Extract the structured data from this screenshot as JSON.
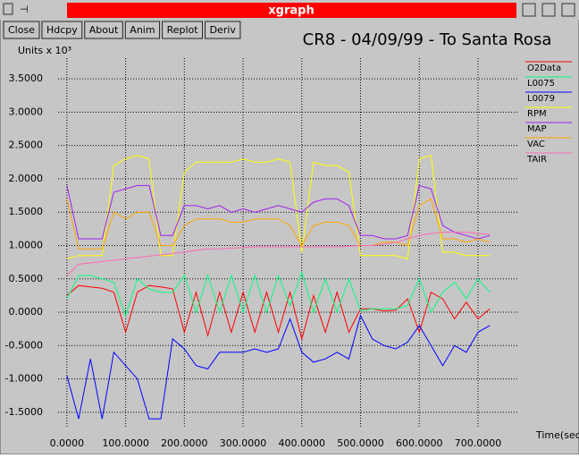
{
  "window": {
    "title": "xgraph",
    "buttons": [
      "Close",
      "Hdcpy",
      "About",
      "Anim",
      "Replot",
      "Deriv"
    ]
  },
  "chart_data": {
    "type": "line",
    "title": "CR8 - 04/09/99 - To Santa Rosa",
    "y_label": "Units x 10³",
    "x_label": "Time(sec)",
    "x": [
      0,
      20,
      40,
      60,
      80,
      100,
      120,
      140,
      160,
      180,
      200,
      220,
      240,
      260,
      280,
      300,
      320,
      340,
      360,
      380,
      400,
      420,
      440,
      460,
      480,
      500,
      520,
      540,
      560,
      580,
      600,
      620,
      640,
      660,
      680,
      700,
      720
    ],
    "series": [
      {
        "name": "O2Data",
        "color": "#ff0000",
        "values": [
          0.25,
          0.4,
          0.38,
          0.36,
          0.3,
          -0.3,
          0.3,
          0.4,
          0.38,
          0.35,
          -0.3,
          0.3,
          -0.35,
          0.3,
          -0.3,
          0.3,
          -0.3,
          0.3,
          -0.3,
          0.3,
          -0.4,
          0.25,
          -0.3,
          0.3,
          -0.3,
          0.05,
          0.05,
          0.02,
          0.03,
          0.2,
          -0.3,
          0.3,
          0.2,
          -0.1,
          0.15,
          -0.1,
          0.05
        ]
      },
      {
        "name": "L0075",
        "color": "#00ff80",
        "values": [
          0.2,
          0.55,
          0.55,
          0.5,
          0.45,
          -0.05,
          0.5,
          0.35,
          0.3,
          0.3,
          0.55,
          0.0,
          0.55,
          0.0,
          0.55,
          0.0,
          0.55,
          0.0,
          0.55,
          0.1,
          0.6,
          0.0,
          0.5,
          0.0,
          0.5,
          0.02,
          0.05,
          0.05,
          0.05,
          0.1,
          0.5,
          0.0,
          0.3,
          0.45,
          0.2,
          0.5,
          0.3
        ]
      },
      {
        "name": "L0079",
        "color": "#0000ff",
        "values": [
          -0.95,
          -1.6,
          -0.7,
          -1.6,
          -0.6,
          -0.8,
          -1.0,
          -1.6,
          -1.6,
          -0.4,
          -0.55,
          -0.8,
          -0.85,
          -0.6,
          -0.6,
          -0.6,
          -0.55,
          -0.6,
          -0.55,
          -0.1,
          -0.6,
          -0.75,
          -0.7,
          -0.6,
          -0.7,
          -0.05,
          -0.4,
          -0.5,
          -0.55,
          -0.45,
          -0.2,
          -0.5,
          -0.8,
          -0.5,
          -0.6,
          -0.3,
          -0.2
        ]
      },
      {
        "name": "RPM",
        "color": "#ffff00",
        "values": [
          0.8,
          0.85,
          0.85,
          0.85,
          2.2,
          2.3,
          2.35,
          2.3,
          0.85,
          0.85,
          2.1,
          2.25,
          2.25,
          2.25,
          2.25,
          2.3,
          2.25,
          2.25,
          2.3,
          2.25,
          0.9,
          2.25,
          2.2,
          2.2,
          2.1,
          0.85,
          0.85,
          0.85,
          0.85,
          0.8,
          2.3,
          2.35,
          0.9,
          0.9,
          0.85,
          0.85,
          0.85
        ]
      },
      {
        "name": "MAP",
        "color": "#a020f0",
        "values": [
          1.9,
          1.1,
          1.1,
          1.1,
          1.8,
          1.85,
          1.9,
          1.9,
          1.15,
          1.15,
          1.6,
          1.6,
          1.55,
          1.6,
          1.5,
          1.55,
          1.5,
          1.55,
          1.6,
          1.55,
          1.5,
          1.65,
          1.7,
          1.7,
          1.6,
          1.15,
          1.15,
          1.1,
          1.1,
          1.15,
          1.9,
          1.85,
          1.3,
          1.2,
          1.15,
          1.1,
          1.15
        ]
      },
      {
        "name": "VAC",
        "color": "#ffa500",
        "values": [
          1.7,
          0.95,
          0.95,
          0.95,
          1.5,
          1.4,
          1.5,
          1.5,
          1.0,
          1.0,
          1.3,
          1.4,
          1.4,
          1.4,
          1.35,
          1.35,
          1.4,
          1.4,
          1.4,
          1.3,
          1.0,
          1.3,
          1.35,
          1.35,
          1.3,
          1.0,
          1.0,
          1.05,
          1.05,
          1.0,
          1.6,
          1.7,
          1.1,
          1.1,
          1.05,
          1.1,
          1.05
        ]
      },
      {
        "name": "TAIR",
        "color": "#ff69b4",
        "values": [
          0.55,
          0.72,
          0.74,
          0.76,
          0.78,
          0.8,
          0.82,
          0.84,
          0.86,
          0.88,
          0.9,
          0.93,
          0.95,
          0.95,
          0.96,
          0.97,
          0.98,
          0.98,
          0.98,
          0.98,
          0.98,
          0.98,
          0.98,
          0.98,
          0.99,
          1.0,
          1.0,
          1.02,
          1.05,
          1.1,
          1.15,
          1.18,
          1.2,
          1.2,
          1.2,
          1.18,
          1.17
        ]
      }
    ],
    "xlim": [
      -15,
      770
    ],
    "ylim": [
      -1.73,
      3.81
    ],
    "xticks": [
      {
        "value": 0,
        "label": "0.0000"
      },
      {
        "value": 100,
        "label": "100.0000"
      },
      {
        "value": 200,
        "label": "200.0000"
      },
      {
        "value": 300,
        "label": "300.0000"
      },
      {
        "value": 400,
        "label": "400.0000"
      },
      {
        "value": 500,
        "label": "500.0000"
      },
      {
        "value": 600,
        "label": "600.0000"
      },
      {
        "value": 700,
        "label": "700.0000"
      }
    ],
    "yticks": [
      {
        "value": -1.5,
        "label": "-1.5000"
      },
      {
        "value": -1,
        "label": "-1.0000"
      },
      {
        "value": -0.5,
        "label": "-0.5000"
      },
      {
        "value": 0,
        "label": "0.0000"
      },
      {
        "value": 0.5,
        "label": "0.5000"
      },
      {
        "value": 1,
        "label": "1.0000"
      },
      {
        "value": 1.5,
        "label": "1.5000"
      },
      {
        "value": 2,
        "label": "2.0000"
      },
      {
        "value": 2.5,
        "label": "2.5000"
      },
      {
        "value": 3,
        "label": "3.0000"
      },
      {
        "value": 3.5,
        "label": "3.5000"
      }
    ],
    "grid": true,
    "legend": "top-right"
  }
}
